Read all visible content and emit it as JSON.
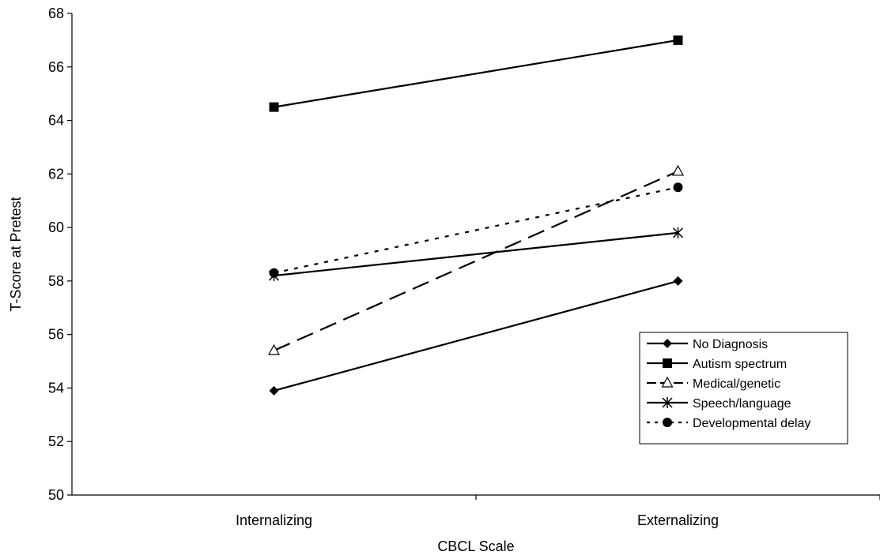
{
  "chart_data": {
    "type": "line",
    "xlabel": "CBCL Scale",
    "ylabel": "T-Score at Pretest",
    "categories": [
      "Internalizing",
      "Externalizing"
    ],
    "ylim": [
      50,
      68
    ],
    "yticks": [
      50,
      52,
      54,
      56,
      58,
      60,
      62,
      64,
      66,
      68
    ],
    "grid": false,
    "legend_position": "bottom-right",
    "series": [
      {
        "name": "No Diagnosis",
        "values": [
          53.9,
          58.0
        ],
        "marker": "diamond",
        "dash": "solid"
      },
      {
        "name": "Autism spectrum",
        "values": [
          64.5,
          67.0
        ],
        "marker": "square",
        "dash": "solid"
      },
      {
        "name": "Medical/genetic",
        "values": [
          55.4,
          62.1
        ],
        "marker": "triangle-open",
        "dash": "long-dash"
      },
      {
        "name": "Speech/language",
        "values": [
          58.2,
          59.8
        ],
        "marker": "asterisk",
        "dash": "solid"
      },
      {
        "name": "Developmental delay",
        "values": [
          58.3,
          61.5
        ],
        "marker": "circle",
        "dash": "dotted"
      }
    ]
  }
}
